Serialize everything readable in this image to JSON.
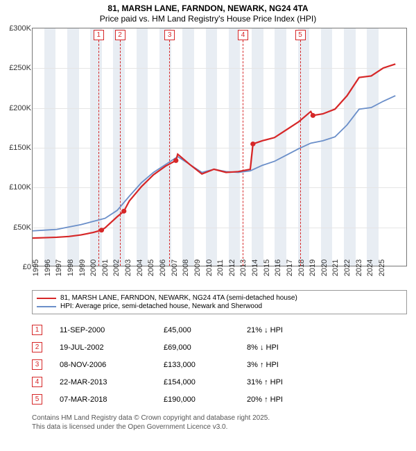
{
  "title": "81, MARSH LANE, FARNDON, NEWARK, NG24 4TA",
  "subtitle": "Price paid vs. HM Land Registry's House Price Index (HPI)",
  "chart": {
    "type": "line",
    "xlim": [
      1995,
      2025.9
    ],
    "ylim": [
      0,
      300000
    ],
    "y_ticks": [
      0,
      50000,
      100000,
      150000,
      200000,
      250000,
      300000
    ],
    "y_tick_labels": [
      "£0",
      "£50K",
      "£100K",
      "£150K",
      "£200K",
      "£250K",
      "£300K"
    ],
    "x_ticks": [
      1995,
      1996,
      1997,
      1998,
      1999,
      2000,
      2001,
      2002,
      2003,
      2004,
      2005,
      2006,
      2007,
      2008,
      2009,
      2010,
      2011,
      2012,
      2013,
      2014,
      2015,
      2016,
      2017,
      2018,
      2019,
      2020,
      2021,
      2022,
      2023,
      2024,
      2025
    ],
    "background_color": "#ffffff",
    "alt_band_color": "#e8edf3",
    "grid_color": "#e5e5e5",
    "border_color": "#777777",
    "colors": {
      "property": "#d62728",
      "hpi": "#6b8fc9"
    },
    "line_width": {
      "property": 2.2,
      "hpi": 1.8
    },
    "series": {
      "hpi": [
        [
          1995,
          44000
        ],
        [
          1996,
          45000
        ],
        [
          1997,
          46000
        ],
        [
          1998,
          49000
        ],
        [
          1999,
          52000
        ],
        [
          2000,
          56000
        ],
        [
          2001,
          60000
        ],
        [
          2002,
          70000
        ],
        [
          2003,
          88000
        ],
        [
          2004,
          105000
        ],
        [
          2005,
          118000
        ],
        [
          2006,
          128000
        ],
        [
          2007,
          138000
        ],
        [
          2008,
          128000
        ],
        [
          2009,
          118000
        ],
        [
          2010,
          122000
        ],
        [
          2011,
          119000
        ],
        [
          2012,
          118000
        ],
        [
          2013,
          120000
        ],
        [
          2014,
          127000
        ],
        [
          2015,
          132000
        ],
        [
          2016,
          140000
        ],
        [
          2017,
          148000
        ],
        [
          2018,
          155000
        ],
        [
          2019,
          158000
        ],
        [
          2020,
          163000
        ],
        [
          2021,
          178000
        ],
        [
          2022,
          198000
        ],
        [
          2023,
          200000
        ],
        [
          2024,
          208000
        ],
        [
          2025,
          215000
        ]
      ],
      "property": [
        [
          1995,
          35000
        ],
        [
          1996,
          35500
        ],
        [
          1997,
          36000
        ],
        [
          1998,
          37000
        ],
        [
          1999,
          39000
        ],
        [
          2000,
          42000
        ],
        [
          2000.7,
          45000
        ],
        [
          2001,
          48000
        ],
        [
          2002,
          62000
        ],
        [
          2002.55,
          69000
        ],
        [
          2003,
          82000
        ],
        [
          2004,
          100000
        ],
        [
          2005,
          115000
        ],
        [
          2006,
          126000
        ],
        [
          2006.85,
          133000
        ],
        [
          2007,
          141000
        ],
        [
          2008,
          128000
        ],
        [
          2009,
          116000
        ],
        [
          2010,
          122000
        ],
        [
          2011,
          118000
        ],
        [
          2012,
          119000
        ],
        [
          2013,
          122000
        ],
        [
          2013.22,
          154000
        ],
        [
          2014,
          158000
        ],
        [
          2015,
          162000
        ],
        [
          2016,
          172000
        ],
        [
          2017,
          182000
        ],
        [
          2018,
          195000
        ],
        [
          2018.18,
          190000
        ],
        [
          2019,
          192000
        ],
        [
          2020,
          198000
        ],
        [
          2021,
          215000
        ],
        [
          2022,
          238000
        ],
        [
          2023,
          240000
        ],
        [
          2024,
          250000
        ],
        [
          2025,
          255000
        ]
      ],
      "property_dots": [
        [
          2000.7,
          45000
        ],
        [
          2002.55,
          69000
        ],
        [
          2006.85,
          133000
        ],
        [
          2013.22,
          154000
        ],
        [
          2018.18,
          190000
        ]
      ]
    },
    "markers": [
      {
        "n": "1",
        "x": 2000.7
      },
      {
        "n": "2",
        "x": 2002.55
      },
      {
        "n": "3",
        "x": 2006.85
      },
      {
        "n": "4",
        "x": 2013.22
      },
      {
        "n": "5",
        "x": 2018.18
      }
    ]
  },
  "legend": {
    "items": [
      {
        "color": "#d62728",
        "label": "81, MARSH LANE, FARNDON, NEWARK, NG24 4TA (semi-detached house)"
      },
      {
        "color": "#6b8fc9",
        "label": "HPI: Average price, semi-detached house, Newark and Sherwood"
      }
    ]
  },
  "transactions": [
    {
      "n": "1",
      "date": "11-SEP-2000",
      "price": "£45,000",
      "diff": "21%",
      "arrow": "↓",
      "suffix": "HPI"
    },
    {
      "n": "2",
      "date": "19-JUL-2002",
      "price": "£69,000",
      "diff": "8%",
      "arrow": "↓",
      "suffix": "HPI"
    },
    {
      "n": "3",
      "date": "08-NOV-2006",
      "price": "£133,000",
      "diff": "3%",
      "arrow": "↑",
      "suffix": "HPI"
    },
    {
      "n": "4",
      "date": "22-MAR-2013",
      "price": "£154,000",
      "diff": "31%",
      "arrow": "↑",
      "suffix": "HPI"
    },
    {
      "n": "5",
      "date": "07-MAR-2018",
      "price": "£190,000",
      "diff": "20%",
      "arrow": "↑",
      "suffix": "HPI"
    }
  ],
  "footer": {
    "line1": "Contains HM Land Registry data © Crown copyright and database right 2025.",
    "line2": "This data is licensed under the Open Government Licence v3.0."
  }
}
